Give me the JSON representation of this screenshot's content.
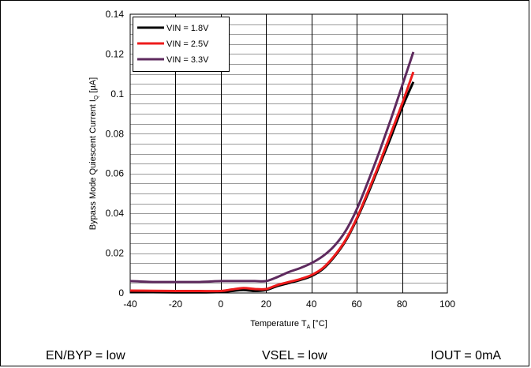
{
  "conditions": {
    "en_byp": "EN/BYP = low",
    "vsel": "VSEL = low",
    "iout": "IOUT = 0mA"
  },
  "chart_data": {
    "type": "line",
    "xlabel": "Temperature T_A [°C]",
    "xlabel_main": "Temperature T",
    "xlabel_sub": "A",
    "xlabel_unit": " [°C]",
    "ylabel": "Bypass Mode Quiescent Current  I_Q [µA]",
    "ylabel_main": "Bypass Mode Quiescent Current  I",
    "ylabel_sub": "Q",
    "ylabel_unit": " [µA]",
    "xlim": [
      -40,
      100
    ],
    "ylim": [
      0,
      0.14
    ],
    "x_ticks": [
      "-40",
      "-20",
      "0",
      "20",
      "40",
      "60",
      "80",
      "100"
    ],
    "y_ticks": [
      "0",
      "0.02",
      "0.04",
      "0.06",
      "0.08",
      "0.1",
      "0.12",
      "0.14"
    ],
    "grid": true,
    "legend_position": "top-left",
    "series": [
      {
        "name": "VIN = 1.8V",
        "color": "#000000",
        "x": [
          -40,
          -30,
          -20,
          -10,
          0,
          5,
          10,
          15,
          20,
          25,
          30,
          35,
          40,
          45,
          50,
          55,
          60,
          65,
          70,
          75,
          80,
          85
        ],
        "y": [
          0.0005,
          0.0004,
          0.0003,
          0.0003,
          0.0005,
          0.001,
          0.0015,
          0.001,
          0.0015,
          0.0035,
          0.005,
          0.0065,
          0.0085,
          0.012,
          0.018,
          0.026,
          0.037,
          0.05,
          0.064,
          0.078,
          0.093,
          0.106
        ]
      },
      {
        "name": "VIN = 2.5V",
        "color": "#ee1c1c",
        "x": [
          -40,
          -30,
          -20,
          -10,
          0,
          5,
          10,
          15,
          20,
          25,
          30,
          35,
          40,
          45,
          50,
          55,
          60,
          65,
          70,
          75,
          80,
          85
        ],
        "y": [
          0.0012,
          0.0011,
          0.001,
          0.001,
          0.001,
          0.0018,
          0.0025,
          0.002,
          0.002,
          0.004,
          0.0055,
          0.007,
          0.009,
          0.0125,
          0.0185,
          0.0265,
          0.0375,
          0.051,
          0.065,
          0.08,
          0.095,
          0.111
        ]
      },
      {
        "name": "VIN = 3.3V",
        "color": "#5e2a5e",
        "x": [
          -40,
          -30,
          -20,
          -10,
          0,
          5,
          10,
          15,
          20,
          25,
          30,
          35,
          40,
          45,
          50,
          55,
          60,
          65,
          70,
          75,
          80,
          85
        ],
        "y": [
          0.006,
          0.0055,
          0.0055,
          0.0055,
          0.006,
          0.006,
          0.006,
          0.006,
          0.006,
          0.008,
          0.0105,
          0.0125,
          0.015,
          0.0185,
          0.0235,
          0.031,
          0.042,
          0.056,
          0.071,
          0.087,
          0.104,
          0.121
        ]
      }
    ]
  }
}
